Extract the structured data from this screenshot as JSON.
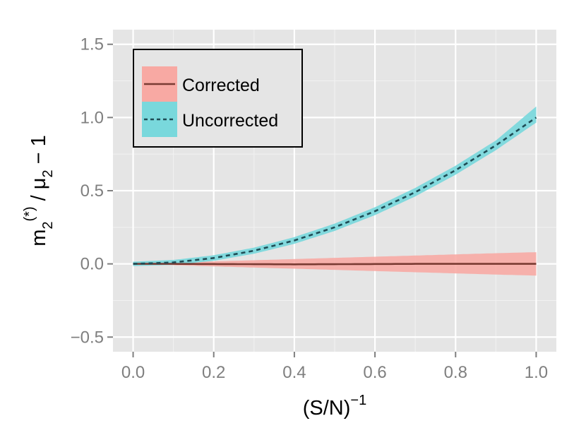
{
  "chart_data": {
    "type": "area",
    "title": "",
    "xlabel": {
      "main": "(S/N)",
      "sup": "−1"
    },
    "ylabel": {
      "m": "m",
      "m_sub": "2",
      "m_sup": "(*)",
      "slash": " / ",
      "mu": "μ",
      "mu_sub": "2",
      "tail": " − 1"
    },
    "xlim": [
      -0.05,
      1.05
    ],
    "ylim": [
      -0.6,
      1.6
    ],
    "x_ticks": [
      0.0,
      0.2,
      0.4,
      0.6,
      0.8,
      1.0
    ],
    "x_tick_labels": [
      "0.0",
      "0.2",
      "0.4",
      "0.6",
      "0.8",
      "1.0"
    ],
    "y_ticks": [
      -0.5,
      0.0,
      0.5,
      1.0,
      1.5
    ],
    "y_tick_labels": [
      "−0.5",
      "0.0",
      "0.5",
      "1.0",
      "1.5"
    ],
    "grid": true,
    "legend_position": "top-left",
    "series": [
      {
        "name": "Corrected",
        "line_style": "solid",
        "line_color": "#7a3b33",
        "fill_color": "#f8a9a3",
        "x": [
          0.0,
          0.1,
          0.2,
          0.3,
          0.4,
          0.5,
          0.6,
          0.7,
          0.8,
          0.9,
          1.0
        ],
        "y": [
          0.0,
          0.0,
          -0.001,
          -0.002,
          -0.003,
          -0.002,
          -0.001,
          0.0,
          0.0,
          0.0,
          0.0
        ],
        "y_lower": [
          0.0,
          -0.009,
          -0.017,
          -0.025,
          -0.033,
          -0.041,
          -0.049,
          -0.057,
          -0.065,
          -0.073,
          -0.08
        ],
        "y_upper": [
          0.0,
          0.009,
          0.017,
          0.025,
          0.033,
          0.041,
          0.049,
          0.057,
          0.065,
          0.073,
          0.08
        ]
      },
      {
        "name": "Uncorrected",
        "line_style": "dashed",
        "line_color": "#1f4c55",
        "fill_color": "#79d8dc",
        "x": [
          0.0,
          0.1,
          0.2,
          0.3,
          0.4,
          0.5,
          0.6,
          0.7,
          0.8,
          0.9,
          1.0
        ],
        "y": [
          0.0,
          0.01,
          0.04,
          0.09,
          0.16,
          0.25,
          0.36,
          0.49,
          0.64,
          0.81,
          1.0
        ],
        "y_lower": [
          -0.015,
          -0.007,
          0.021,
          0.069,
          0.137,
          0.225,
          0.333,
          0.461,
          0.609,
          0.777,
          0.965
        ],
        "y_upper": [
          0.015,
          0.027,
          0.059,
          0.111,
          0.183,
          0.275,
          0.387,
          0.519,
          0.671,
          0.843,
          1.075
        ]
      }
    ]
  }
}
